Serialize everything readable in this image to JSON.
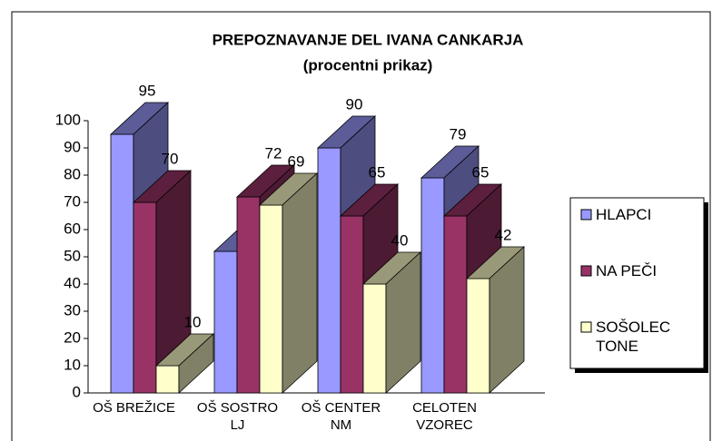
{
  "chart_data": {
    "type": "bar3d",
    "title": "PREPOZNAVANJE DEL IVANA CANKARJA",
    "subtitle": "(procentni prikaz)",
    "categories": [
      "OŠ BREŽICE",
      "OŠ SOSTRO LJ",
      "OŠ CENTER NM",
      "CELOTEN VZOREC"
    ],
    "series": [
      {
        "name": "HLAPCI",
        "color": "#9999ff",
        "values": [
          95,
          52,
          90,
          79
        ]
      },
      {
        "name": "NA PEČI",
        "color": "#993366",
        "values": [
          70,
          72,
          65,
          65
        ]
      },
      {
        "name": "SOŠOLEC TONE",
        "color": "#ffffcc",
        "values": [
          10,
          69,
          40,
          42
        ]
      }
    ],
    "ylim": [
      0,
      100
    ],
    "yticks": [
      0,
      10,
      20,
      30,
      40,
      50,
      60,
      70,
      80,
      90,
      100
    ],
    "legend": "right"
  }
}
